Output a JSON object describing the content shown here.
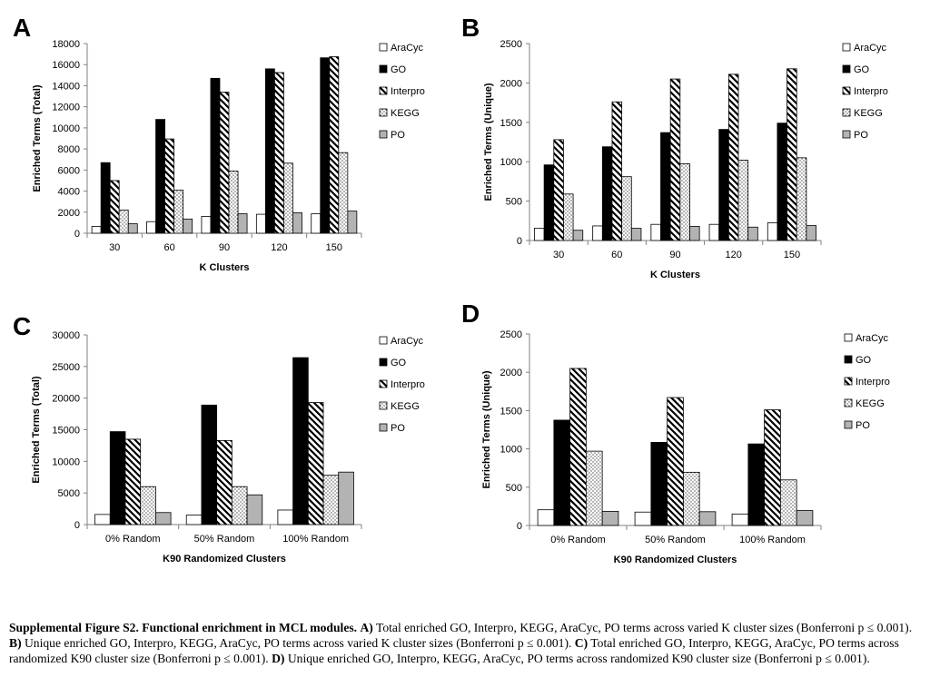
{
  "panel_letters": [
    "A",
    "B",
    "C",
    "D"
  ],
  "legend_style": {
    "AraCyc": "white",
    "GO": "black",
    "Interpro": "hatch",
    "KEGG": "dots",
    "PO": "gray"
  },
  "colors": {
    "gray_fill": "#b3b3b3",
    "stroke": "#000000",
    "axis": "#808080"
  },
  "chart_data": [
    {
      "type": "bar",
      "ylabel": "Enriched Terms (Total)",
      "xlabel": "K Clusters",
      "categories": [
        "30",
        "60",
        "90",
        "120",
        "150"
      ],
      "ylim": [
        0,
        18000
      ],
      "yticks": [
        0,
        2000,
        4000,
        6000,
        8000,
        10000,
        12000,
        14000,
        16000,
        18000
      ],
      "legend_position": "right",
      "series": [
        {
          "name": "AraCyc",
          "values": [
            650,
            1100,
            1600,
            1800,
            1850
          ]
        },
        {
          "name": "GO",
          "values": [
            6700,
            10800,
            14700,
            15600,
            16650
          ]
        },
        {
          "name": "Interpro",
          "values": [
            5000,
            8950,
            13400,
            15250,
            16750
          ]
        },
        {
          "name": "KEGG",
          "values": [
            2200,
            4100,
            5900,
            6650,
            7650
          ]
        },
        {
          "name": "PO",
          "values": [
            900,
            1350,
            1850,
            1950,
            2100
          ]
        }
      ]
    },
    {
      "type": "bar",
      "ylabel": "Enriched Terms (Unique)",
      "xlabel": "K Clusters",
      "categories": [
        "30",
        "60",
        "90",
        "120",
        "150"
      ],
      "ylim": [
        0,
        2500
      ],
      "yticks": [
        0,
        500,
        1000,
        1500,
        2000,
        2500
      ],
      "legend_position": "right",
      "series": [
        {
          "name": "AraCyc",
          "values": [
            155,
            185,
            205,
            205,
            225
          ]
        },
        {
          "name": "GO",
          "values": [
            960,
            1190,
            1370,
            1410,
            1490
          ]
        },
        {
          "name": "Interpro",
          "values": [
            1280,
            1760,
            2050,
            2110,
            2180
          ]
        },
        {
          "name": "KEGG",
          "values": [
            590,
            810,
            975,
            1020,
            1050
          ]
        },
        {
          "name": "PO",
          "values": [
            130,
            155,
            180,
            170,
            190
          ]
        }
      ]
    },
    {
      "type": "bar",
      "ylabel": "Enriched Terms (Total)",
      "xlabel": "K90 Randomized Clusters",
      "categories": [
        "0% Random",
        "50% Random",
        "100% Random"
      ],
      "ylim": [
        0,
        30000
      ],
      "yticks": [
        0,
        5000,
        10000,
        15000,
        20000,
        25000,
        30000
      ],
      "legend_position": "right",
      "series": [
        {
          "name": "AraCyc",
          "values": [
            1600,
            1500,
            2300
          ]
        },
        {
          "name": "GO",
          "values": [
            14700,
            18900,
            26400
          ]
        },
        {
          "name": "Interpro",
          "values": [
            13500,
            13300,
            19300
          ]
        },
        {
          "name": "KEGG",
          "values": [
            6000,
            6000,
            7800
          ]
        },
        {
          "name": "PO",
          "values": [
            1900,
            4700,
            8300
          ]
        }
      ]
    },
    {
      "type": "bar",
      "ylabel": "Enriched Terms (Unique)",
      "xlabel": "K90 Randomized Clusters",
      "categories": [
        "0% Random",
        "50% Random",
        "100% Random"
      ],
      "ylim": [
        0,
        2500
      ],
      "yticks": [
        0,
        500,
        1000,
        1500,
        2000,
        2500
      ],
      "legend_position": "right",
      "series": [
        {
          "name": "AraCyc",
          "values": [
            205,
            175,
            150
          ]
        },
        {
          "name": "GO",
          "values": [
            1375,
            1085,
            1065
          ]
        },
        {
          "name": "Interpro",
          "values": [
            2050,
            1670,
            1510
          ]
        },
        {
          "name": "KEGG",
          "values": [
            970,
            695,
            595
          ]
        },
        {
          "name": "PO",
          "values": [
            185,
            180,
            195
          ]
        }
      ]
    }
  ],
  "caption": {
    "label": "Supplemental Figure S2.  Functional enrichment in MCL modules.",
    "parts": [
      {
        "key": "A)",
        "text": " Total enriched GO, Interpro, KEGG, AraCyc, PO terms  across varied K cluster sizes (Bonferroni p ≤ 0.001). "
      },
      {
        "key": "B)",
        "text": " Unique enriched GO, Interpro, KEGG, AraCyc, PO terms  across varied K cluster sizes (Bonferroni p ≤ 0.001). "
      },
      {
        "key": "C)",
        "text": " Total enriched GO, Interpro, KEGG, AraCyc, PO terms across  randomized K90 cluster size (Bonferroni p ≤ 0.001). "
      },
      {
        "key": "D)",
        "text": " Unique enriched GO, Interpro, KEGG, AraCyc, PO terms  across  randomized K90 cluster size (Bonferroni p ≤ 0.001)."
      }
    ]
  }
}
